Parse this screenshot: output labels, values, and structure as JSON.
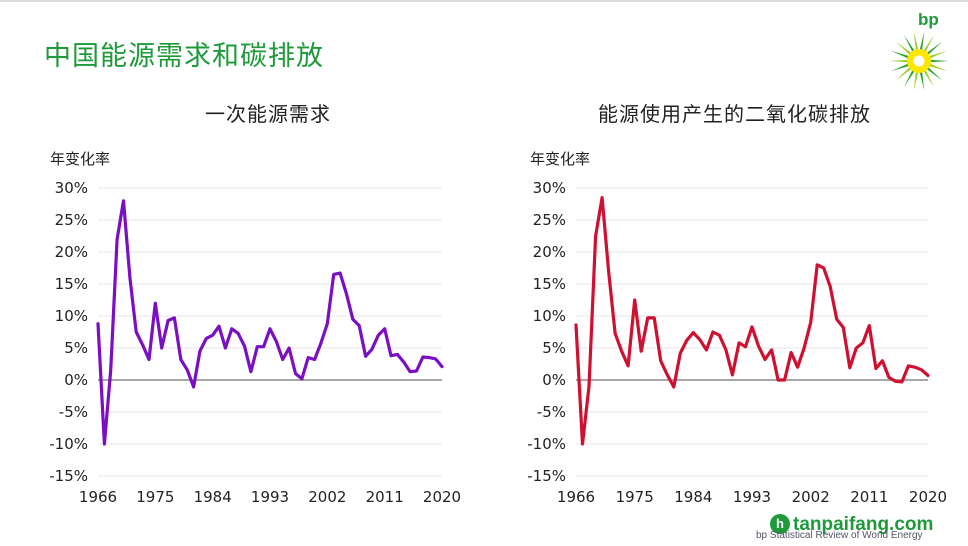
{
  "page": {
    "title": "中国能源需求和碳排放",
    "brand": "bp",
    "watermark": "tanpaifang.com",
    "source": "bp Statistical Review of World Energy"
  },
  "chart_data": [
    {
      "type": "line",
      "title": "一次能源需求",
      "ylabel": "年变化率",
      "color": "#7a0fc4",
      "ylim": [
        -15,
        30
      ],
      "xlim": [
        1966,
        2020
      ],
      "yticks": [
        30,
        25,
        20,
        15,
        10,
        5,
        0,
        -5,
        -10,
        -15
      ],
      "ytick_labels": [
        "30%",
        "25%",
        "20%",
        "15%",
        "10%",
        "5%",
        "0%",
        "-5%",
        "-10%",
        "-15%"
      ],
      "xticks": [
        1966,
        1975,
        1984,
        1993,
        2002,
        2011,
        2020
      ],
      "grid": true,
      "x": [
        1966,
        1967,
        1968,
        1969,
        1970,
        1971,
        1972,
        1973,
        1974,
        1975,
        1976,
        1977,
        1978,
        1979,
        1980,
        1981,
        1982,
        1983,
        1984,
        1985,
        1986,
        1987,
        1988,
        1989,
        1990,
        1991,
        1992,
        1993,
        1994,
        1995,
        1996,
        1997,
        1998,
        1999,
        2000,
        2001,
        2002,
        2003,
        2004,
        2005,
        2006,
        2007,
        2008,
        2009,
        2010,
        2011,
        2012,
        2013,
        2014,
        2015,
        2016,
        2017,
        2018,
        2019,
        2020
      ],
      "y": [
        8.8,
        -10,
        1.5,
        22,
        28,
        16,
        7.5,
        5.5,
        3.2,
        12,
        5,
        9.3,
        9.7,
        3.2,
        1.6,
        -1.1,
        4.5,
        6.5,
        7,
        8.4,
        5,
        8,
        7.3,
        5.3,
        1.3,
        5.2,
        5.2,
        8,
        6,
        3.2,
        5,
        1,
        0.2,
        3.5,
        3.2,
        5.8,
        8.8,
        16.5,
        16.7,
        13.5,
        9.5,
        8.5,
        3.7,
        4.8,
        7,
        8,
        3.8,
        4,
        2.8,
        1.3,
        1.4,
        3.6,
        3.5,
        3.3,
        2.1
      ]
    },
    {
      "type": "line",
      "title": "能源使用产生的二氧化碳排放",
      "ylabel": "年变化率",
      "color": "#d01030",
      "ylim": [
        -15,
        30
      ],
      "xlim": [
        1966,
        2020
      ],
      "yticks": [
        30,
        25,
        20,
        15,
        10,
        5,
        0,
        -5,
        -10,
        -15
      ],
      "ytick_labels": [
        "30%",
        "25%",
        "20%",
        "15%",
        "10%",
        "5%",
        "0%",
        "-5%",
        "-10%",
        "-15%"
      ],
      "xticks": [
        1966,
        1975,
        1984,
        1993,
        2002,
        2011,
        2020
      ],
      "grid": true,
      "x": [
        1966,
        1967,
        1968,
        1969,
        1970,
        1971,
        1972,
        1973,
        1974,
        1975,
        1976,
        1977,
        1978,
        1979,
        1980,
        1981,
        1982,
        1983,
        1984,
        1985,
        1986,
        1987,
        1988,
        1989,
        1990,
        1991,
        1992,
        1993,
        1994,
        1995,
        1996,
        1997,
        1998,
        1999,
        2000,
        2001,
        2002,
        2003,
        2004,
        2005,
        2006,
        2007,
        2008,
        2009,
        2010,
        2011,
        2012,
        2013,
        2014,
        2015,
        2016,
        2017,
        2018,
        2019,
        2020
      ],
      "y": [
        8.6,
        -10,
        -1,
        22.5,
        28.5,
        17,
        7.3,
        4.5,
        2.2,
        12.5,
        4.5,
        9.7,
        9.7,
        3,
        0.8,
        -1.1,
        4.2,
        6.2,
        7.4,
        6.3,
        4.7,
        7.5,
        7,
        4.7,
        0.8,
        5.8,
        5.2,
        8.3,
        5.3,
        3.2,
        4.7,
        0,
        0,
        4.3,
        2,
        5,
        9,
        18,
        17.5,
        14.6,
        9.5,
        8.2,
        1.9,
        5,
        5.8,
        8.5,
        1.8,
        3,
        0.4,
        -0.2,
        -0.3,
        2.2,
        2,
        1.6,
        0.7
      ]
    }
  ]
}
